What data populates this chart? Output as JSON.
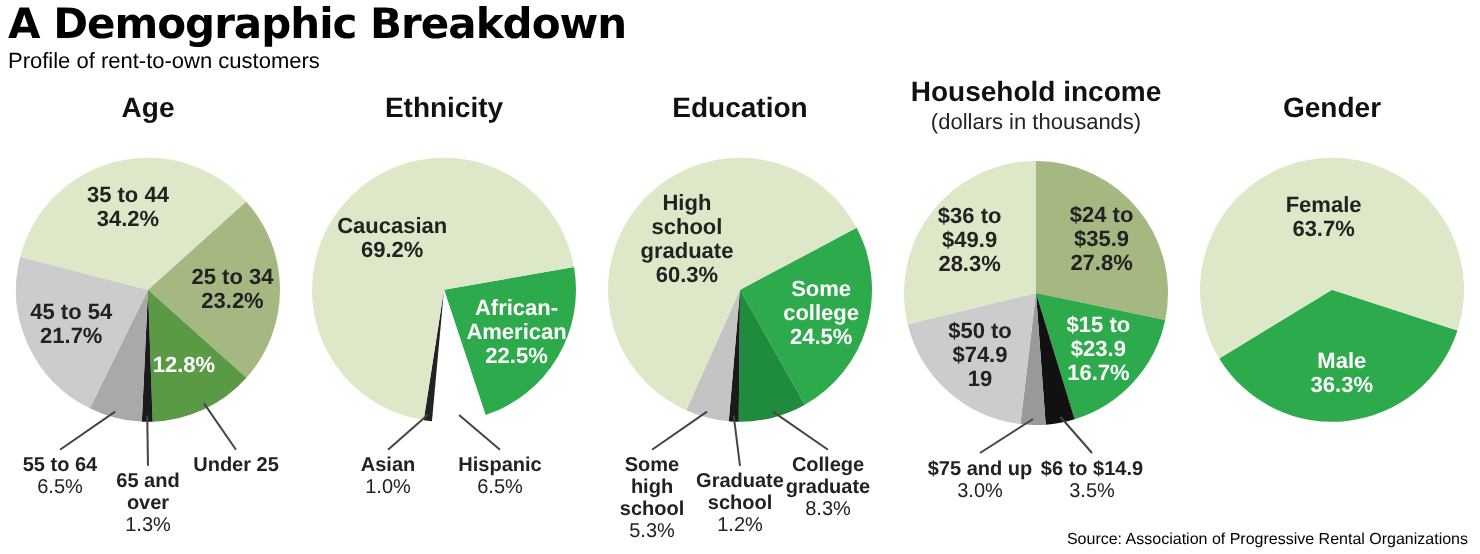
{
  "chart_data": [
    {
      "type": "other",
      "title": "A Demographic Breakdown",
      "subtitle": "Profile of rent-to-own customers",
      "annotations": [
        "Source: Association of Progressive Rental Organizations"
      ]
    },
    {
      "type": "pie",
      "title": "Age",
      "categories": [
        "25 to 34",
        "Under 25",
        "65 and over",
        "55 to 64",
        "45 to 54",
        "35 to 44"
      ],
      "values": [
        23.2,
        12.8,
        1.3,
        6.5,
        21.7,
        34.2
      ],
      "colors": [
        "#a6b882",
        "#5a9a44",
        "#1a1a1a",
        "#a9a9a9",
        "#cccccc",
        "#dde8c8"
      ],
      "value_labels": [
        "23.2%",
        "12.8%",
        "1.3%",
        "6.5%",
        "21.7%",
        "34.2%"
      ]
    },
    {
      "type": "pie",
      "title": "Ethnicity",
      "categories": [
        "African-American",
        "Hispanic",
        "Asian",
        "Caucasian"
      ],
      "values": [
        22.5,
        6.5,
        1.0,
        69.2
      ],
      "colors": [
        "#2daa4b",
        "#ffffff",
        "#222222",
        "#dde8c8"
      ],
      "value_labels": [
        "22.5%",
        "6.5%",
        "1.0%",
        "69.2%"
      ]
    },
    {
      "type": "pie",
      "title": "Education",
      "categories": [
        "Some college",
        "College graduate",
        "Graduate school",
        "Some high school",
        "High school graduate"
      ],
      "values": [
        24.5,
        8.3,
        1.2,
        5.3,
        60.3
      ],
      "colors": [
        "#2daa4b",
        "#1e8c3c",
        "#1a1a1a",
        "#c4c4c4",
        "#dde8c8"
      ],
      "value_labels": [
        "24.5%",
        "8.3%",
        "1.2%",
        "5.3%",
        "60.3%"
      ]
    },
    {
      "type": "pie",
      "title": "Household income",
      "subtitle": "(dollars in thousands)",
      "categories": [
        "$24 to $35.9",
        "$15 to $23.9",
        "$6 to $14.9",
        "$75 and up",
        "$50 to $74.9",
        "$36 to $49.9"
      ],
      "values": [
        27.8,
        16.7,
        3.5,
        3.0,
        19,
        28.3
      ],
      "colors": [
        "#a6b882",
        "#2daa4b",
        "#111111",
        "#999999",
        "#cccccc",
        "#dde8c8"
      ],
      "value_labels": [
        "27.8%",
        "16.7%",
        "3.5%",
        "3.0%",
        "19",
        "28.3%"
      ]
    },
    {
      "type": "pie",
      "title": "Gender",
      "categories": [
        "Male",
        "Female"
      ],
      "values": [
        36.3,
        63.7
      ],
      "colors": [
        "#2daa4b",
        "#dde8c8"
      ],
      "value_labels": [
        "36.3%",
        "63.7%"
      ]
    }
  ]
}
